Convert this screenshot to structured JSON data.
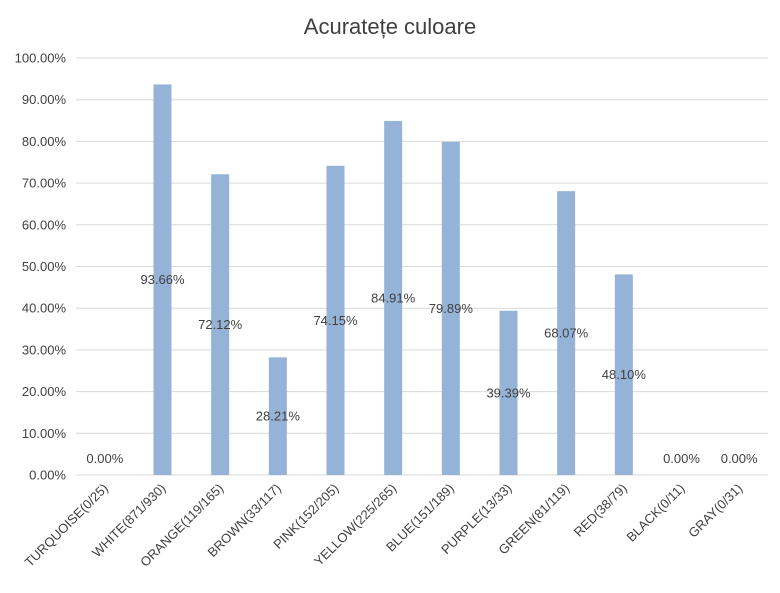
{
  "chart_data": {
    "type": "bar",
    "title": "Acuratețe culoare",
    "xlabel": "",
    "ylabel": "",
    "ylim": [
      0,
      100
    ],
    "y_ticks": [
      "0.00%",
      "10.00%",
      "20.00%",
      "30.00%",
      "40.00%",
      "50.00%",
      "60.00%",
      "70.00%",
      "80.00%",
      "90.00%",
      "100.00%"
    ],
    "categories": [
      "TURQUOISE(0/25)",
      "WHITE(871/930)",
      "ORANGE(119/165)",
      "BROWN(33/117)",
      "PINK(152/205)",
      "YELLOW(225/265)",
      "BLUE(151/189)",
      "PURPLE(13/33)",
      "GREEN(81/119)",
      "RED(38/79)",
      "BLACK(0/11)",
      "GRAY(0/31)"
    ],
    "values": [
      0,
      93.66,
      72.12,
      28.21,
      74.15,
      84.91,
      79.89,
      39.39,
      68.07,
      48.1,
      0,
      0
    ],
    "data_labels": [
      "0.00%",
      "93.66%",
      "72.12%",
      "28.21%",
      "74.15%",
      "84.91%",
      "79.89%",
      "39.39%",
      "68.07%",
      "48.10%",
      "0.00%",
      "0.00%"
    ],
    "grid": true,
    "legend": "none",
    "colors": {
      "bar": "#95b3d7",
      "grid": "#d9d9d9",
      "text": "#404040"
    }
  }
}
